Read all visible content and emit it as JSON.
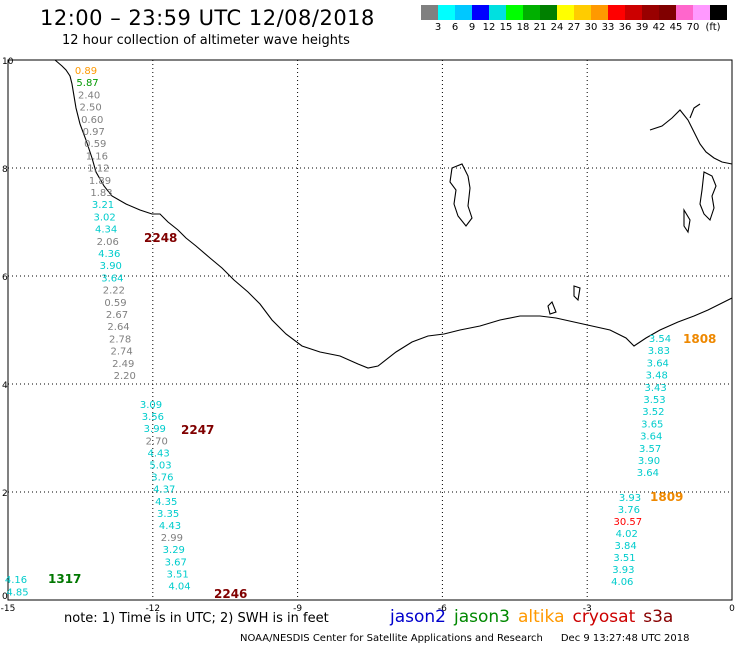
{
  "header": {
    "title": "12:00 – 23:59 UTC 12/08/2018",
    "subtitle": "12 hour collection of altimeter wave heights"
  },
  "legend": {
    "colors": [
      "#808080",
      "#00ffff",
      "#00c8ff",
      "#0000ff",
      "#00e0e0",
      "#00ff00",
      "#00b000",
      "#008000",
      "#ffff00",
      "#ffcc00",
      "#ff9900",
      "#ff0000",
      "#cc0000",
      "#990000",
      "#800000",
      "#ff66cc",
      "#ff99ff",
      "#000000"
    ],
    "ticks": [
      "3",
      "6",
      "9",
      "12",
      "15",
      "18",
      "21",
      "24",
      "27",
      "30",
      "33",
      "36",
      "39",
      "42",
      "45",
      "70",
      "(ft)"
    ]
  },
  "axes": {
    "x_ticks": [
      "-15",
      "-12",
      "-9",
      "-6",
      "-3",
      "0"
    ],
    "y_ticks": [
      "0",
      "2",
      "4",
      "6",
      "8",
      "10"
    ]
  },
  "tracks": [
    {
      "pass": "2248",
      "satellite": "cryosat",
      "color": "#800000",
      "values": [
        {
          "v": "0.89",
          "c": "#ff9900"
        },
        {
          "v": "5.87",
          "c": "#009900"
        },
        {
          "v": "2.40",
          "c": "#808080"
        },
        {
          "v": "2.50",
          "c": "#808080"
        },
        {
          "v": "0.60",
          "c": "#808080"
        },
        {
          "v": "0.97",
          "c": "#808080"
        },
        {
          "v": "0.59",
          "c": "#808080"
        },
        {
          "v": "1.16",
          "c": "#808080"
        },
        {
          "v": "1.12",
          "c": "#808080"
        },
        {
          "v": "1.89",
          "c": "#808080"
        },
        {
          "v": "1.83",
          "c": "#808080"
        },
        {
          "v": "3.21",
          "c": "#00cccc"
        },
        {
          "v": "3.02",
          "c": "#00cccc"
        },
        {
          "v": "4.34",
          "c": "#00cccc"
        },
        {
          "v": "2.06",
          "c": "#808080"
        },
        {
          "v": "4.36",
          "c": "#00cccc"
        },
        {
          "v": "3.90",
          "c": "#00cccc"
        },
        {
          "v": "3.64",
          "c": "#00cccc"
        },
        {
          "v": "2.22",
          "c": "#808080"
        },
        {
          "v": "0.59",
          "c": "#808080"
        },
        {
          "v": "2.67",
          "c": "#808080"
        },
        {
          "v": "2.64",
          "c": "#808080"
        },
        {
          "v": "2.78",
          "c": "#808080"
        },
        {
          "v": "2.74",
          "c": "#808080"
        },
        {
          "v": "2.49",
          "c": "#808080"
        },
        {
          "v": "2.20",
          "c": "#808080"
        }
      ]
    },
    {
      "pass": "2247",
      "satellite": "cryosat",
      "color": "#800000",
      "values": [
        {
          "v": "3.09",
          "c": "#00cccc"
        },
        {
          "v": "3.56",
          "c": "#00cccc"
        },
        {
          "v": "3.99",
          "c": "#00cccc"
        },
        {
          "v": "2.70",
          "c": "#808080"
        },
        {
          "v": "4.43",
          "c": "#00cccc"
        },
        {
          "v": "5.03",
          "c": "#00cccc"
        },
        {
          "v": "3.76",
          "c": "#00cccc"
        },
        {
          "v": "4.37",
          "c": "#00cccc"
        },
        {
          "v": "4.35",
          "c": "#00cccc"
        },
        {
          "v": "3.35",
          "c": "#00cccc"
        },
        {
          "v": "4.43",
          "c": "#00cccc"
        },
        {
          "v": "2.99",
          "c": "#808080"
        },
        {
          "v": "3.29",
          "c": "#00cccc"
        },
        {
          "v": "3.67",
          "c": "#00cccc"
        },
        {
          "v": "3.51",
          "c": "#00cccc"
        },
        {
          "v": "4.04",
          "c": "#00cccc"
        }
      ]
    },
    {
      "pass": "2246",
      "satellite": "cryosat",
      "color": "#800000",
      "values": []
    },
    {
      "pass": "1317",
      "satellite": "jason3",
      "color": "#007700",
      "values": [
        {
          "v": "4.16",
          "c": "#00cccc"
        },
        {
          "v": "4.85",
          "c": "#00cccc"
        }
      ]
    },
    {
      "pass": "1808",
      "satellite": "altika",
      "color": "#ee8800",
      "values": [
        {
          "v": "3.54",
          "c": "#00cccc"
        },
        {
          "v": "3.83",
          "c": "#00cccc"
        },
        {
          "v": "3.64",
          "c": "#00cccc"
        },
        {
          "v": "3.48",
          "c": "#00cccc"
        },
        {
          "v": "3.43",
          "c": "#00cccc"
        },
        {
          "v": "3.53",
          "c": "#00cccc"
        },
        {
          "v": "3.52",
          "c": "#00cccc"
        },
        {
          "v": "3.65",
          "c": "#00cccc"
        },
        {
          "v": "3.64",
          "c": "#00cccc"
        },
        {
          "v": "3.57",
          "c": "#00cccc"
        },
        {
          "v": "3.90",
          "c": "#00cccc"
        },
        {
          "v": "3.64",
          "c": "#00cccc"
        }
      ]
    },
    {
      "pass": "1809",
      "satellite": "altika",
      "color": "#ee8800",
      "values": [
        {
          "v": "3.93",
          "c": "#00cccc"
        },
        {
          "v": "3.76",
          "c": "#00cccc"
        },
        {
          "v": "30.57",
          "c": "#ff0000"
        },
        {
          "v": "4.02",
          "c": "#00cccc"
        },
        {
          "v": "3.84",
          "c": "#00cccc"
        },
        {
          "v": "3.51",
          "c": "#00cccc"
        },
        {
          "v": "3.93",
          "c": "#00cccc"
        },
        {
          "v": "4.06",
          "c": "#00cccc"
        }
      ]
    }
  ],
  "note": "note: 1) Time is in UTC; 2) SWH is in feet",
  "satellites": [
    {
      "name": "jason2",
      "color": "#0000cc"
    },
    {
      "name": "jason3",
      "color": "#008800"
    },
    {
      "name": "altika",
      "color": "#ff9900"
    },
    {
      "name": "cryosat",
      "color": "#cc0000"
    },
    {
      "name": "s3a",
      "color": "#880000"
    }
  ],
  "footer": {
    "org": "NOAA/NESDIS Center for Satellite Applications and Research",
    "timestamp": "Dec  9 13:27:48 UTC 2018"
  }
}
